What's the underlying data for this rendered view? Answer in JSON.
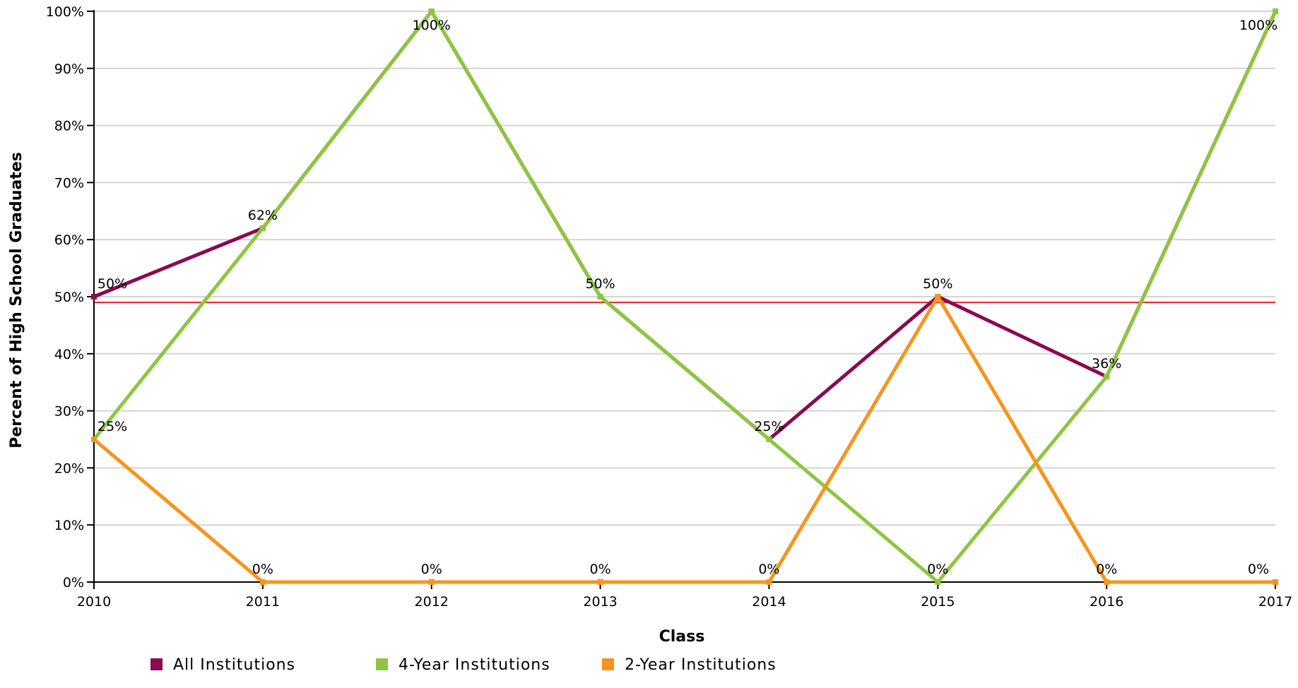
{
  "chart_data": {
    "type": "line",
    "xlabel": "Class",
    "ylabel": "Percent of High School Graduates",
    "x": [
      "2010",
      "2011",
      "2012",
      "2013",
      "2014",
      "2015",
      "2016",
      "2017"
    ],
    "y_ticks": [
      "0%",
      "10%",
      "20%",
      "30%",
      "40%",
      "50%",
      "60%",
      "70%",
      "80%",
      "90%",
      "100%"
    ],
    "ylim": [
      0,
      100
    ],
    "grid": true,
    "legend_position": "bottom",
    "reference_line": {
      "value": 49,
      "color": "#e8202a"
    },
    "series": [
      {
        "name": "All Institutions",
        "color": "#8b0a50",
        "values": [
          50,
          62,
          100,
          50,
          25,
          50,
          36,
          100
        ]
      },
      {
        "name": "4-Year Institutions",
        "color": "#8dc63f",
        "values": [
          25,
          62,
          100,
          50,
          25,
          0,
          36,
          100
        ]
      },
      {
        "name": "2-Year Institutions",
        "color": "#f7941d",
        "values": [
          25,
          0,
          0,
          0,
          0,
          50,
          0,
          0
        ]
      }
    ],
    "data_labels": [
      "50%",
      "62%",
      "100%",
      "50%",
      "25%",
      "50%",
      "36%",
      "100%"
    ],
    "data_labels_2": [
      "25%",
      "0%",
      "0%",
      "0%",
      "0%",
      "0%",
      "0%",
      "0%"
    ]
  }
}
